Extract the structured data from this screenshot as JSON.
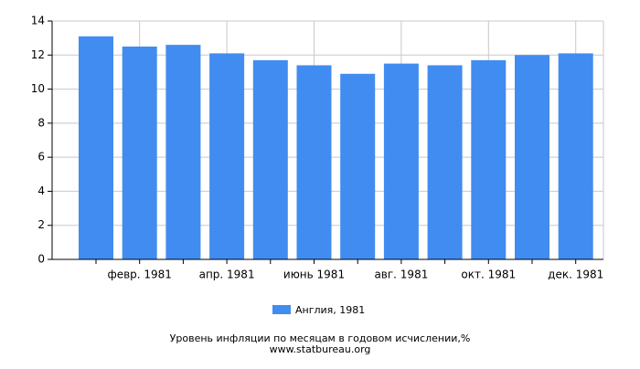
{
  "chart_data": {
    "type": "bar",
    "title": "Уровень инфляции по месяцам в годовом исчислении,%",
    "source": "www.statbureau.org",
    "categories": [
      null,
      "февр. 1981",
      null,
      "апр. 1981",
      null,
      "июнь 1981",
      null,
      "авг. 1981",
      null,
      "окт. 1981",
      null,
      "дек. 1981"
    ],
    "series": [
      {
        "name": "Англия, 1981",
        "color": "#418cf0",
        "values": [
          13.1,
          12.5,
          12.6,
          12.1,
          11.7,
          11.4,
          10.9,
          11.5,
          11.4,
          11.7,
          12.0,
          12.1
        ]
      }
    ],
    "ylim": [
      0,
      14
    ],
    "yticks": [
      0,
      2,
      4,
      6,
      8,
      10,
      12,
      14
    ],
    "grid": true
  }
}
